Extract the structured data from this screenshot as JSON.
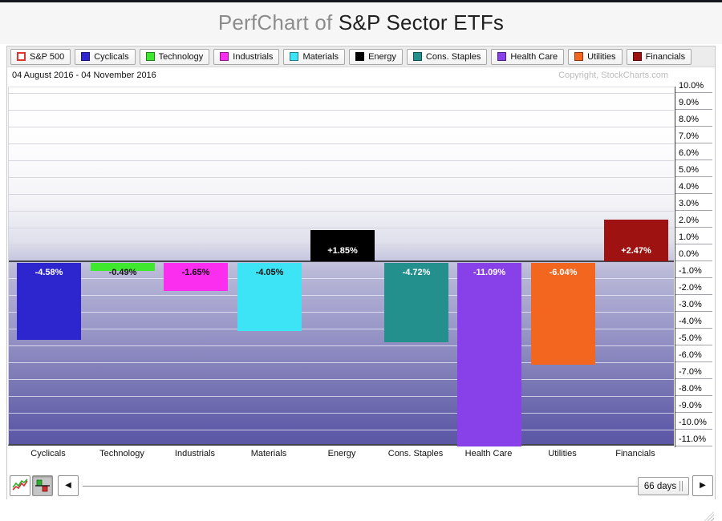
{
  "page": {
    "title_prefix": "PerfChart of ",
    "title_main": "S&P Sector ETFs"
  },
  "legend": {
    "items": [
      {
        "label": "S&P 500",
        "color": "#ffffff",
        "border": "#df352c",
        "filled": false
      },
      {
        "label": "Cyclicals",
        "color": "#2d25cd",
        "filled": true
      },
      {
        "label": "Technology",
        "color": "#3fe82e",
        "filled": true
      },
      {
        "label": "Industrials",
        "color": "#fb2ef0",
        "filled": true
      },
      {
        "label": "Materials",
        "color": "#3ce4f5",
        "filled": true
      },
      {
        "label": "Energy",
        "color": "#000000",
        "filled": true
      },
      {
        "label": "Cons. Staples",
        "color": "#23908d",
        "filled": true
      },
      {
        "label": "Health Care",
        "color": "#8840e8",
        "filled": true
      },
      {
        "label": "Utilities",
        "color": "#f2661f",
        "filled": true
      },
      {
        "label": "Financials",
        "color": "#9e1312",
        "filled": true
      }
    ]
  },
  "chart_data": {
    "type": "bar",
    "title": "PerfChart of S&P Sector ETFs",
    "period_label": "04 August 2016 - 04 November 2016",
    "copyright": "Copyright, StockCharts.com",
    "categories": [
      "Cyclicals",
      "Technology",
      "Industrials",
      "Materials",
      "Energy",
      "Cons. Staples",
      "Health Care",
      "Utilities",
      "Financials"
    ],
    "values": [
      -4.58,
      -0.49,
      -1.65,
      -4.05,
      1.85,
      -4.72,
      -11.09,
      -6.04,
      2.47
    ],
    "bar_labels": [
      "-4.58%",
      "-0.49%",
      "-1.65%",
      "-4.05%",
      "+1.85%",
      "-4.72%",
      "-11.09%",
      "-6.04%",
      "+2.47%"
    ],
    "bar_colors": [
      "#2d25cd",
      "#3fe82e",
      "#fb2ef0",
      "#3ce4f5",
      "#000000",
      "#23908d",
      "#8840e8",
      "#f2661f",
      "#9e1312"
    ],
    "label_colors": [
      "#ffffff",
      "#111111",
      "#111111",
      "#111111",
      "#ffffff",
      "#ffffff",
      "#ffffff",
      "#ffffff",
      "#ffffff"
    ],
    "xlabel": "",
    "ylabel": "",
    "ylim": [
      -11.0,
      10.3
    ],
    "ytick_min": -11,
    "ytick_max": 10,
    "ytick_step": 1,
    "ytick_suffix": "%",
    "grid": true,
    "legend_position": "top"
  },
  "toolbar": {
    "line_mode_tooltip": "line-chart-mode",
    "bar_mode_tooltip": "histogram-mode",
    "left_arrow": "◀",
    "right_arrow": "▶",
    "range_label": "66 days"
  }
}
